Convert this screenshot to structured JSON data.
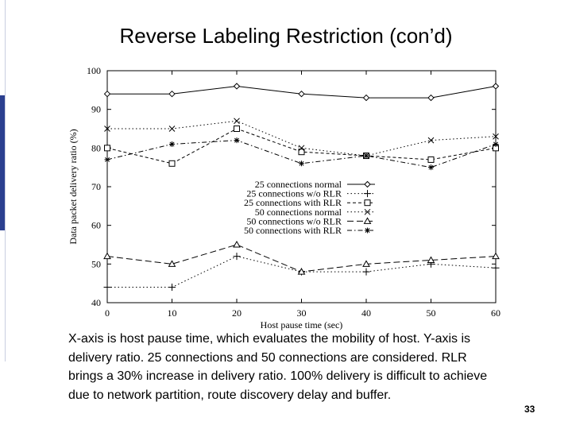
{
  "slide": {
    "title": "Reverse Labeling Restriction (con’d)",
    "caption": "X-axis is host pause time, which evaluates the mobility of host. Y-axis is delivery ratio. 25 connections and 50 connections are considered. RLR brings a 30% increase in delivery ratio. 100% delivery is difficult to achieve due to network partition, route discovery delay and buffer.",
    "page_number": "33"
  },
  "chart_data": {
    "type": "line",
    "title": "",
    "xlabel": "Host pause time (sec)",
    "ylabel": "Data packet delivery ratio (%)",
    "x": [
      0,
      10,
      20,
      30,
      40,
      50,
      60
    ],
    "xlim": [
      0,
      60
    ],
    "ylim": [
      40,
      100
    ],
    "xticks": [
      0,
      10,
      20,
      30,
      40,
      50,
      60
    ],
    "yticks": [
      40,
      50,
      60,
      70,
      80,
      90,
      100
    ],
    "grid": false,
    "legend_position": "center",
    "series": [
      {
        "name": "25 connections normal",
        "marker": "diamond",
        "dash": "solid",
        "values": [
          94,
          94,
          96,
          94,
          93,
          93,
          96
        ]
      },
      {
        "name": "25 connections w/o RLR",
        "marker": "plus",
        "dash": "dotted",
        "values": [
          44,
          44,
          52,
          48,
          48,
          50,
          49
        ]
      },
      {
        "name": "25 connections with RLR",
        "marker": "square",
        "dash": "dashed",
        "values": [
          80,
          76,
          85,
          79,
          78,
          77,
          80
        ]
      },
      {
        "name": "50 connections normal",
        "marker": "cross",
        "dash": "dotted",
        "values": [
          85,
          85,
          87,
          80,
          78,
          82,
          83
        ]
      },
      {
        "name": "50 connections w/o RLR",
        "marker": "triangle",
        "dash": "longdash",
        "values": [
          52,
          50,
          55,
          48,
          50,
          51,
          52
        ]
      },
      {
        "name": "50 connections with RLR",
        "marker": "asterisk",
        "dash": "dashdot",
        "values": [
          77,
          81,
          82,
          76,
          78,
          75,
          81
        ]
      }
    ]
  }
}
